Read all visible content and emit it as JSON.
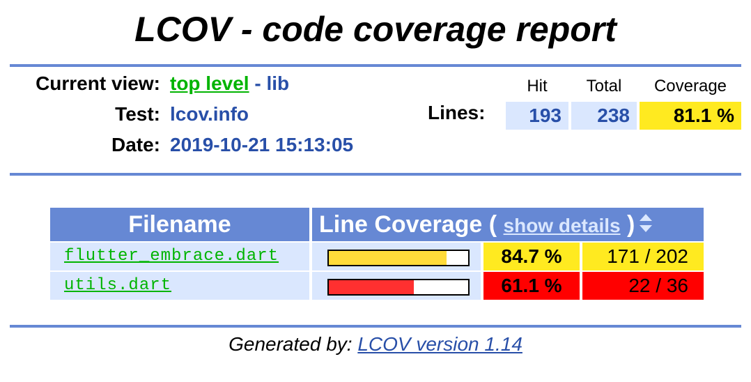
{
  "title": "LCOV - code coverage report",
  "header": {
    "current_view_label": "Current view:",
    "top_level_link": "top level",
    "view_separator": " - ",
    "view_dir": "lib",
    "test_label": "Test:",
    "test_value": "lcov.info",
    "date_label": "Date:",
    "date_value": "2019-10-21 15:13:05"
  },
  "summary": {
    "col_hit": "Hit",
    "col_total": "Total",
    "col_coverage": "Coverage",
    "lines_label": "Lines:",
    "hit": "193",
    "total": "238",
    "coverage": "81.1 %",
    "coverage_color": "#ffea20"
  },
  "table": {
    "col_filename": "Filename",
    "col_line_coverage": "Line Coverage",
    "open_paren": " ( ",
    "show_details": "show details",
    "close_paren": " )",
    "sort_icon": "sort-updown-icon",
    "rows": [
      {
        "file": "flutter_embrace.dart",
        "percent": "84.7 %",
        "count": "171 / 202",
        "fraction": 0.847,
        "bar_color": "#ffdb3a",
        "pct_bg": "#ffea20",
        "cnt_bg": "#ffea20"
      },
      {
        "file": "utils.dart",
        "percent": "61.1 %",
        "count": "22 / 36",
        "fraction": 0.611,
        "bar_color": "#ff3030",
        "pct_bg": "#ff0000",
        "cnt_bg": "#ff0000"
      }
    ]
  },
  "footer": {
    "generated_by": "Generated by: ",
    "lcov_link": "LCOV version 1.14"
  }
}
